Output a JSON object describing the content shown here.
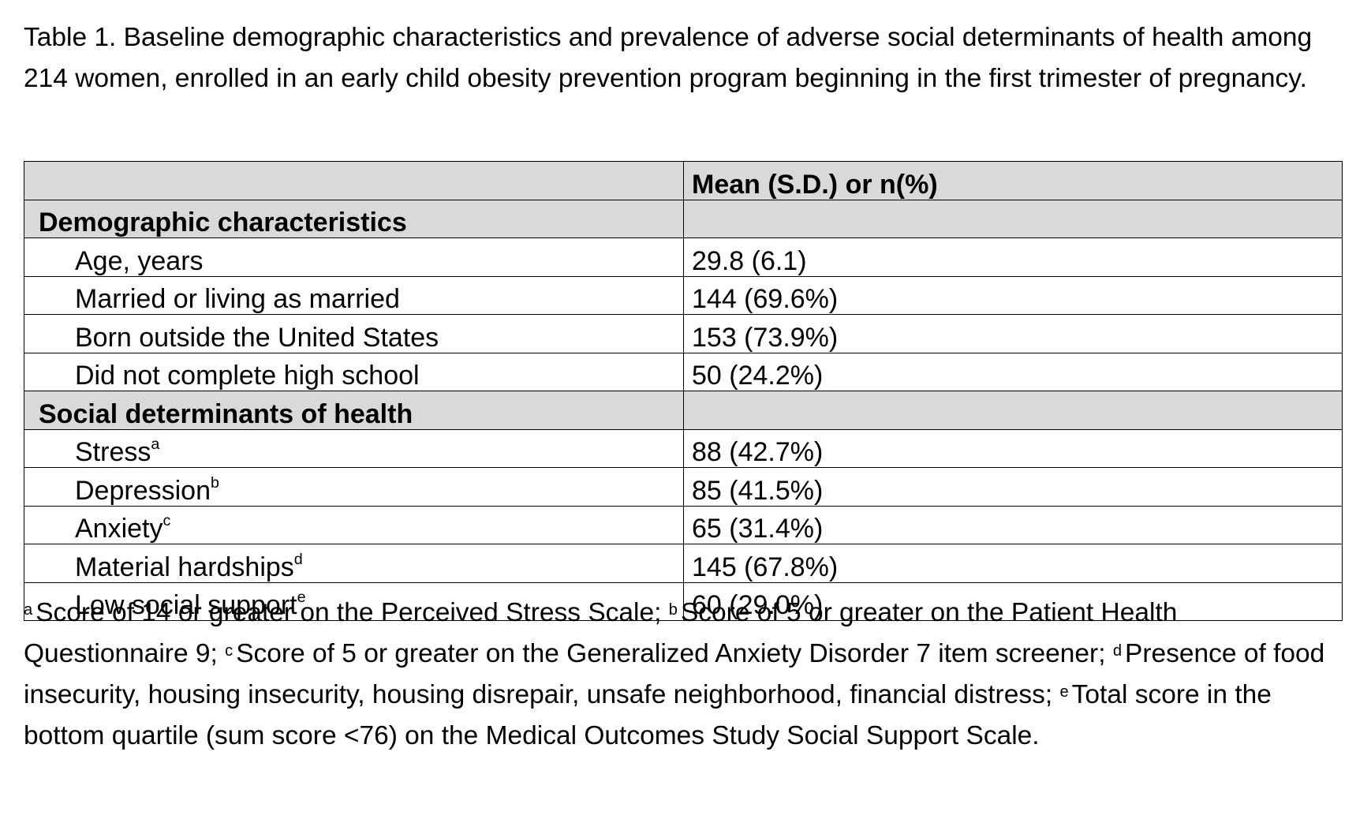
{
  "caption": "Table 1. Baseline demographic characteristics and prevalence of adverse social determinants of health among 214 women, enrolled in an early child obesity prevention program beginning in the first trimester of pregnancy.",
  "table": {
    "header": {
      "label": "",
      "value": "Mean (S.D.) or n(%)"
    },
    "sections": [
      {
        "title": "Demographic characteristics",
        "rows": [
          {
            "label": "Age, years",
            "sup": "",
            "value": "29.8 (6.1)"
          },
          {
            "label": "Married or living as married",
            "sup": "",
            "value": "144 (69.6%)"
          },
          {
            "label": "Born outside the United States",
            "sup": "",
            "value": "153 (73.9%)"
          },
          {
            "label": "Did not complete high school",
            "sup": "",
            "value": "50 (24.2%)"
          }
        ]
      },
      {
        "title": "Social determinants of health",
        "rows": [
          {
            "label": "Stress",
            "sup": "a",
            "value": "88 (42.7%)"
          },
          {
            "label": "Depression",
            "sup": "b",
            "value": "85 (41.5%)"
          },
          {
            "label": "Anxiety",
            "sup": "c",
            "value": "65 (31.4%)"
          },
          {
            "label": "Material hardships",
            "sup": "d",
            "value": "145 (67.8%)"
          },
          {
            "label": "Low social support",
            "sup": "e",
            "value": "60 (29.0%)"
          }
        ]
      }
    ]
  },
  "footnotes": [
    {
      "mark": "a",
      "text": "Score of 14 or greater on the Perceived Stress Scale; "
    },
    {
      "mark": "b",
      "text": "Score of 5 or greater on the Patient Health Questionnaire 9; "
    },
    {
      "mark": "c",
      "text": "Score of 5 or greater on the Generalized Anxiety Disorder 7 item screener; "
    },
    {
      "mark": "d",
      "text": "Presence of food insecurity, housing insecurity, housing disrepair, unsafe neighborhood, financial distress; "
    },
    {
      "mark": "e",
      "text": "Total score in the bottom quartile (sum score <76) on the Medical Outcomes Study Social Support Scale."
    }
  ],
  "colors": {
    "header_fill": "#d9d9d9",
    "border": "#000000",
    "text": "#000000"
  }
}
